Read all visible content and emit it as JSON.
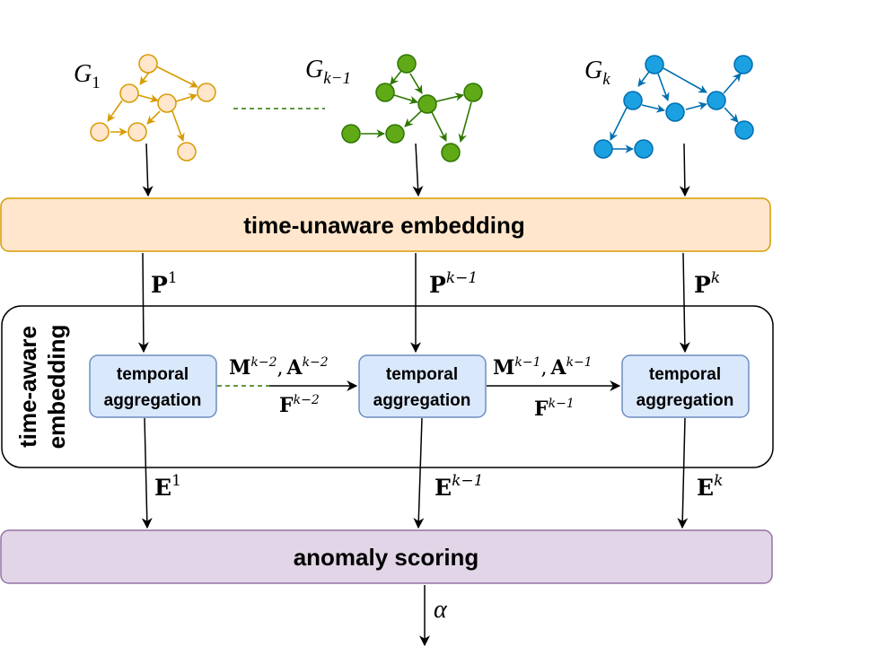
{
  "colors": {
    "g1_stroke": "#d79b00",
    "g1_fill": "#ffe6cc",
    "gk1_stroke": "#2d7600",
    "gk1_fill": "#60a917",
    "gk_stroke": "#006eaf",
    "gk_fill": "#1ba1e2",
    "embed_fill": "#ffe6cc",
    "embed_stroke": "#d79b00",
    "agg_fill": "#dae8fc",
    "agg_stroke": "#6c8ebf",
    "score_fill": "#e1d5e7",
    "score_stroke": "#9673a6",
    "dash_green": "#2d7600"
  },
  "graphs": {
    "g1": {
      "label_base": "G",
      "label_sub": "1"
    },
    "gk1": {
      "label_base": "G",
      "label_sub": "k−1"
    },
    "gk": {
      "label_base": "G",
      "label_sub": "k"
    }
  },
  "embedding": {
    "label": "time-unaware embedding"
  },
  "p_labels": {
    "p1": {
      "base": "P",
      "sup": "1"
    },
    "pk1": {
      "base": "P",
      "sup": "k−1"
    },
    "pk": {
      "base": "P",
      "sup": "k"
    }
  },
  "time_aware": {
    "line1": "time-aware",
    "line2": "embedding"
  },
  "aggregation": {
    "agg1": {
      "line1": "temporal",
      "line2": "aggregation"
    },
    "agg2": {
      "line1": "temporal",
      "line2": "aggregation"
    },
    "agg3": {
      "line1": "temporal",
      "line2": "aggregation"
    }
  },
  "edge_labels": {
    "ma_k2": {
      "m": "M",
      "m_sup": "k−2",
      "sep": ",",
      "a": "A",
      "a_sup": "k−2"
    },
    "f_k2": {
      "base": "F",
      "sup": "k−2"
    },
    "ma_k1": {
      "m": "M",
      "m_sup": "k−1",
      "sep": ",",
      "a": "A",
      "a_sup": "k−1"
    },
    "f_k1": {
      "base": "F",
      "sup": "k−1"
    }
  },
  "e_labels": {
    "e1": {
      "base": "E",
      "sup": "1"
    },
    "ek1": {
      "base": "E",
      "sup": "k−1"
    },
    "ek": {
      "base": "E",
      "sup": "k"
    }
  },
  "scoring": {
    "label": "anomaly scoring"
  },
  "output": {
    "label": "α"
  }
}
